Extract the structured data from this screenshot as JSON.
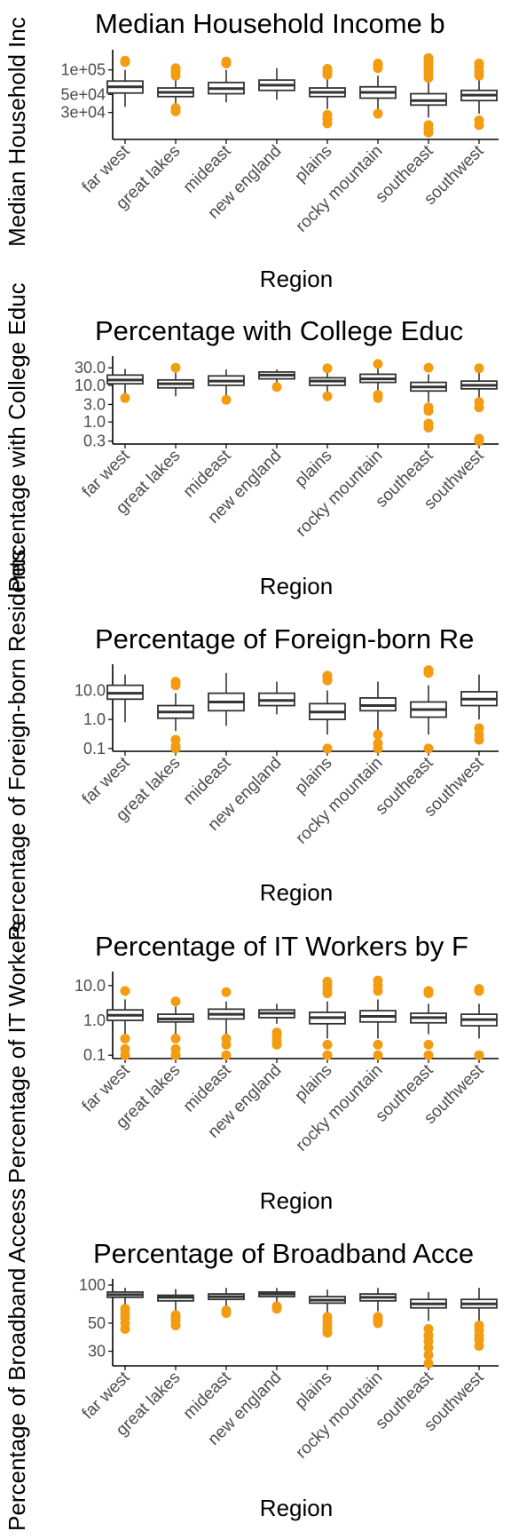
{
  "chart_data": [
    {
      "type": "boxplot",
      "title": "Median Household Income b",
      "xlabel": "Region",
      "ylabel": "Median Household Inc",
      "y_scale": "log",
      "ylim": [
        14000,
        160000
      ],
      "y_ticks": [
        30000,
        50000,
        100000
      ],
      "y_tick_labels": [
        "3e+04",
        "5e+04",
        "1e+05"
      ],
      "categories": [
        "far west",
        "great lakes",
        "mideast",
        "new england",
        "plains",
        "rocky mountain",
        "southeast",
        "southwest"
      ],
      "boxes": [
        {
          "min": 35000,
          "q1": 52000,
          "median": 62000,
          "q3": 73000,
          "max": 100000,
          "outliers": [
            125000,
            130000
          ]
        },
        {
          "min": 36000,
          "q1": 47000,
          "median": 53000,
          "q3": 60000,
          "max": 78000,
          "outliers": [
            31000,
            34000,
            85000,
            95000,
            105000
          ]
        },
        {
          "min": 40000,
          "q1": 51000,
          "median": 59000,
          "q3": 70000,
          "max": 100000,
          "outliers": [
            120000,
            127000
          ]
        },
        {
          "min": 43000,
          "q1": 56000,
          "median": 65000,
          "q3": 75000,
          "max": 105000,
          "outliers": []
        },
        {
          "min": 33000,
          "q1": 47000,
          "median": 53000,
          "q3": 60000,
          "max": 80000,
          "outliers": [
            22000,
            25000,
            28000,
            87000,
            95000,
            103000
          ]
        },
        {
          "min": 33000,
          "q1": 45000,
          "median": 53000,
          "q3": 62000,
          "max": 85000,
          "outliers": [
            29000,
            105000,
            115000,
            120000
          ]
        },
        {
          "min": 26000,
          "q1": 37000,
          "median": 42000,
          "q3": 51000,
          "max": 72000,
          "outliers": [
            17000,
            19000,
            21000,
            80000,
            90000,
            100000,
            110000,
            120000,
            130000,
            140000
          ]
        },
        {
          "min": 29000,
          "q1": 42000,
          "median": 49000,
          "q3": 56000,
          "max": 76000,
          "outliers": [
            21000,
            24000,
            85000,
            95000,
            110000,
            120000
          ]
        }
      ]
    },
    {
      "type": "boxplot",
      "title": "Percentage with College Educ",
      "xlabel": "Region",
      "ylabel": "Percentage with College Educ",
      "y_scale": "log",
      "ylim": [
        0.25,
        50
      ],
      "y_ticks": [
        0.3,
        1.0,
        3.0,
        10.0,
        30.0
      ],
      "y_tick_labels": [
        "0.3",
        "1.0",
        "3.0",
        "10.0",
        "30.0"
      ],
      "categories": [
        "far west",
        "great lakes",
        "mideast",
        "new england",
        "plains",
        "rocky mountain",
        "southeast",
        "southwest"
      ],
      "boxes": [
        {
          "min": 6,
          "q1": 11,
          "median": 14,
          "q3": 19,
          "max": 28,
          "outliers": [
            4.5
          ]
        },
        {
          "min": 5,
          "q1": 8.5,
          "median": 11,
          "q3": 14,
          "max": 22,
          "outliers": [
            30
          ]
        },
        {
          "min": 5,
          "q1": 10,
          "median": 13,
          "q3": 18,
          "max": 27,
          "outliers": [
            4
          ]
        },
        {
          "min": 9,
          "q1": 15,
          "median": 19,
          "q3": 23,
          "max": 27,
          "outliers": [
            9
          ]
        },
        {
          "min": 6,
          "q1": 10,
          "median": 13,
          "q3": 16,
          "max": 25,
          "outliers": [
            5,
            29
          ]
        },
        {
          "min": 6,
          "q1": 12,
          "median": 15,
          "q3": 20,
          "max": 30,
          "outliers": [
            4.5,
            5.5,
            38
          ]
        },
        {
          "min": 3.5,
          "q1": 7,
          "median": 9,
          "q3": 12,
          "max": 20,
          "outliers": [
            0.7,
            0.9,
            2.0,
            2.5,
            30
          ]
        },
        {
          "min": 4,
          "q1": 8,
          "median": 10,
          "q3": 13,
          "max": 22,
          "outliers": [
            0.3,
            0.35,
            2.5,
            3.5,
            29
          ]
        }
      ]
    },
    {
      "type": "boxplot",
      "title": "Percentage of Foreign-born Re",
      "xlabel": "Region",
      "ylabel": "Percentage of Foreign-born Residents",
      "y_scale": "log",
      "ylim": [
        0.08,
        60
      ],
      "y_ticks": [
        0.1,
        1.0,
        10.0
      ],
      "y_tick_labels": [
        "0.1",
        "1.0",
        "10.0"
      ],
      "categories": [
        "far west",
        "great lakes",
        "mideast",
        "new england",
        "plains",
        "rocky mountain",
        "southeast",
        "southwest"
      ],
      "boxes": [
        {
          "min": 0.8,
          "q1": 5,
          "median": 8,
          "q3": 15,
          "max": 35,
          "outliers": []
        },
        {
          "min": 0.4,
          "q1": 1.1,
          "median": 1.8,
          "q3": 3,
          "max": 8,
          "outliers": [
            0.1,
            0.12,
            0.2,
            15,
            20
          ]
        },
        {
          "min": 0.6,
          "q1": 2,
          "median": 4,
          "q3": 8,
          "max": 40,
          "outliers": []
        },
        {
          "min": 1.5,
          "q1": 3,
          "median": 4.5,
          "q3": 8,
          "max": 20,
          "outliers": []
        },
        {
          "min": 0.3,
          "q1": 1,
          "median": 1.8,
          "q3": 3.5,
          "max": 10,
          "outliers": [
            0.1,
            22,
            28,
            32
          ]
        },
        {
          "min": 0.4,
          "q1": 2,
          "median": 3,
          "q3": 5.5,
          "max": 20,
          "outliers": [
            0.1,
            0.15,
            0.3
          ]
        },
        {
          "min": 0.3,
          "q1": 1.2,
          "median": 2.2,
          "q3": 4,
          "max": 15,
          "outliers": [
            0.1,
            40,
            45,
            50
          ]
        },
        {
          "min": 1,
          "q1": 3,
          "median": 5,
          "q3": 9,
          "max": 35,
          "outliers": [
            0.2,
            0.3,
            0.5
          ]
        }
      ]
    },
    {
      "type": "boxplot",
      "title": "Percentage of IT Workers by F",
      "xlabel": "Region",
      "ylabel": "Percentage of IT Workers",
      "y_scale": "log",
      "ylim": [
        0.08,
        20
      ],
      "y_ticks": [
        0.1,
        1.0,
        10.0
      ],
      "y_tick_labels": [
        "0.1",
        "1.0",
        "10.0"
      ],
      "categories": [
        "far west",
        "great lakes",
        "mideast",
        "new england",
        "plains",
        "rocky mountain",
        "southeast",
        "southwest"
      ],
      "boxes": [
        {
          "min": 0.4,
          "q1": 1,
          "median": 1.4,
          "q3": 2,
          "max": 4,
          "outliers": [
            0.1,
            0.15,
            0.3,
            7
          ]
        },
        {
          "min": 0.4,
          "q1": 0.9,
          "median": 1.1,
          "q3": 1.5,
          "max": 2.5,
          "outliers": [
            0.1,
            0.15,
            0.3,
            3.5
          ]
        },
        {
          "min": 0.4,
          "q1": 1.1,
          "median": 1.5,
          "q3": 2.1,
          "max": 3.5,
          "outliers": [
            0.1,
            0.2,
            0.3,
            6.5
          ]
        },
        {
          "min": 0.8,
          "q1": 1.2,
          "median": 1.6,
          "q3": 2,
          "max": 3,
          "outliers": [
            0.2,
            0.25,
            0.35,
            0.45
          ]
        },
        {
          "min": 0.3,
          "q1": 0.8,
          "median": 1.2,
          "q3": 1.7,
          "max": 3.5,
          "outliers": [
            0.1,
            0.2,
            6,
            8,
            10,
            13
          ]
        },
        {
          "min": 0.3,
          "q1": 0.9,
          "median": 1.3,
          "q3": 1.9,
          "max": 4,
          "outliers": [
            0.1,
            0.2,
            7,
            10,
            14
          ]
        },
        {
          "min": 0.4,
          "q1": 0.85,
          "median": 1.2,
          "q3": 1.6,
          "max": 3,
          "outliers": [
            0.1,
            0.2,
            6,
            7
          ]
        },
        {
          "min": 0.3,
          "q1": 0.7,
          "median": 1.05,
          "q3": 1.5,
          "max": 3,
          "outliers": [
            0.1,
            7,
            8
          ]
        }
      ]
    },
    {
      "type": "boxplot",
      "title": "Percentage of Broadband Acce",
      "xlabel": "Region",
      "ylabel": "Percentage of Broadband Access",
      "y_scale": "log",
      "ylim": [
        23,
        105
      ],
      "y_ticks": [
        30,
        50,
        100
      ],
      "y_tick_labels": [
        "30",
        "50",
        "100"
      ],
      "categories": [
        "far west",
        "great lakes",
        "mideast",
        "new england",
        "plains",
        "rocky mountain",
        "southeast",
        "southwest"
      ],
      "boxes": [
        {
          "min": 70,
          "q1": 80,
          "median": 84,
          "q3": 88,
          "max": 95,
          "outliers": [
            45,
            50,
            55,
            60,
            65
          ]
        },
        {
          "min": 62,
          "q1": 75,
          "median": 80,
          "q3": 83,
          "max": 93,
          "outliers": [
            48,
            52,
            55,
            58
          ]
        },
        {
          "min": 67,
          "q1": 77,
          "median": 81,
          "q3": 85,
          "max": 95,
          "outliers": [
            60,
            63
          ]
        },
        {
          "min": 72,
          "q1": 81,
          "median": 85,
          "q3": 88,
          "max": 95,
          "outliers": [
            65,
            68
          ]
        },
        {
          "min": 60,
          "q1": 72,
          "median": 76,
          "q3": 81,
          "max": 92,
          "outliers": [
            42,
            45,
            48,
            52,
            56
          ]
        },
        {
          "min": 62,
          "q1": 75,
          "median": 80,
          "q3": 85,
          "max": 95,
          "outliers": [
            50,
            53,
            56
          ]
        },
        {
          "min": 52,
          "q1": 66,
          "median": 71,
          "q3": 77,
          "max": 88,
          "outliers": [
            24,
            28,
            32,
            36,
            40,
            45
          ]
        },
        {
          "min": 52,
          "q1": 66,
          "median": 71,
          "q3": 77,
          "max": 95,
          "outliers": [
            33,
            37,
            40,
            44,
            48
          ]
        }
      ]
    }
  ],
  "colors": {
    "box_fill": "#ffffff",
    "box_stroke": "#333333",
    "outlier": "#f39c12",
    "axis": "#000000",
    "tick_label": "#4d4d4d",
    "text": "#000000"
  }
}
